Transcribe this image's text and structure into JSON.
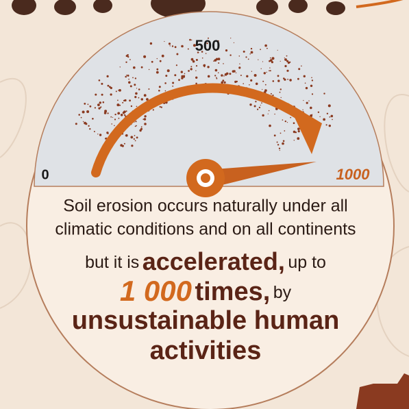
{
  "gauge": {
    "labels": [
      "0",
      "500",
      "1000"
    ]
  },
  "text": {
    "line1": "Soil erosion occurs naturally under all",
    "line2": "climatic conditions and on all continents",
    "line3": [
      "but it is",
      "accelerated,",
      "up to"
    ],
    "line4": [
      "1 000",
      "times,",
      "by"
    ],
    "line5": "unsustainable human",
    "line6": "activities"
  }
}
